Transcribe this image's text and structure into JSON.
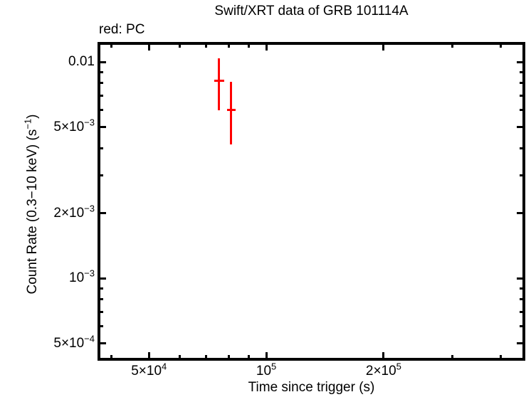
{
  "chart": {
    "title": "Swift/XRT data of GRB 101114A",
    "legend_label": "red: PC",
    "xlabel": "Time since trigger (s)"
  },
  "chart_data": {
    "type": "scatter",
    "title": "Swift/XRT data of GRB 101114A",
    "xlabel": "Time since trigger (s)",
    "ylabel_parts": {
      "pre": "Count Rate (0.3−10 keV) (s",
      "sup": "−1",
      "post": ")"
    },
    "legend": "red: PC",
    "legend_position": "top-left",
    "grid": false,
    "xscale": "log",
    "yscale": "log",
    "xlim": [
      36900,
      462000
    ],
    "ylim": [
      0.000416,
      0.0124
    ],
    "colors": {
      "pc_mode": "#ff0000",
      "axis": "#000000",
      "background": "#ffffff"
    },
    "x_ticks": {
      "major": [
        {
          "v": 50000,
          "base": "5×10",
          "exp": "4"
        },
        {
          "v": 100000,
          "base": "10",
          "exp": "5"
        },
        {
          "v": 200000,
          "base": "2×10",
          "exp": "5"
        }
      ],
      "minor": [
        40000,
        60000,
        70000,
        80000,
        90000,
        300000,
        400000
      ]
    },
    "y_ticks": {
      "major": [
        {
          "v": 0.01,
          "base": "0.01",
          "exp": ""
        },
        {
          "v": 0.005,
          "base": "5×10",
          "exp": "−3"
        },
        {
          "v": 0.002,
          "base": "2×10",
          "exp": "−3"
        },
        {
          "v": 0.001,
          "base": "10",
          "exp": "−3"
        },
        {
          "v": 0.0005,
          "base": "5×10",
          "exp": "−4"
        }
      ],
      "minor": [
        0.009,
        0.008,
        0.007,
        0.006,
        0.004,
        0.003,
        0.0009,
        0.0008,
        0.0007,
        0.0006
      ]
    },
    "series": [
      {
        "name": "PC",
        "color": "#ff0000",
        "points": [
          {
            "x": 75600,
            "x_lo": 73600,
            "x_hi": 77900,
            "y": 0.0082,
            "y_lo": 0.006,
            "y_hi": 0.0104
          },
          {
            "x": 81300,
            "x_lo": 79200,
            "x_hi": 83400,
            "y": 0.006,
            "y_lo": 0.00415,
            "y_hi": 0.0081
          }
        ]
      }
    ]
  }
}
